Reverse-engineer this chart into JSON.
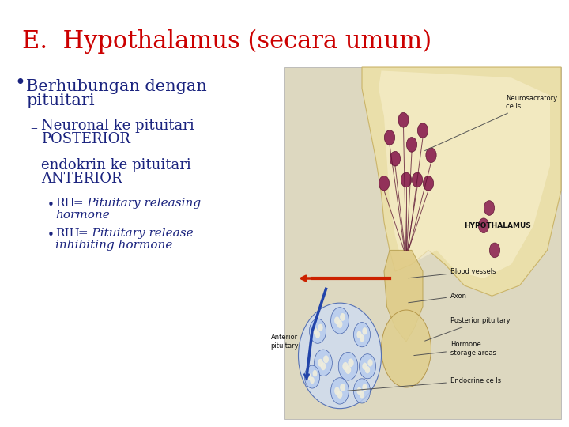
{
  "title": "E.  Hypothalamus (secara umum)",
  "title_color": "#cc0000",
  "title_fontsize": 22,
  "bg_color": "#ffffff",
  "bullet1_line1": "Berhubungan dengan",
  "bullet1_line2": "pituitari",
  "bullet1_color": "#1a237e",
  "bullet1_fontsize": 15,
  "sub1_line1": "Neuronal ke pituitari",
  "sub1_line2": "POSTERIOR",
  "sub2_line1": "endokrin ke pituitari",
  "sub2_line2": "ANTERIOR",
  "sub_color": "#1a237e",
  "sub_fontsize": 13,
  "subsub1_bold": "RH",
  "subsub1_italic": " = Pituitary releasing",
  "subsub1_italic2": "hormone",
  "subsub2_bold": "RIH",
  "subsub2_italic": " = Pituitary release",
  "subsub2_italic2": "inhibiting hormone",
  "subsub_color": "#1a237e",
  "subsub_fontsize": 11,
  "diagram_bg": "#ddd8c0",
  "hypo_body_color": "#e8d898",
  "hypo_inner_color": "#f5eecc",
  "cell_color": "#8b2252",
  "cell_edge_color": "#5a1030",
  "ant_pit_color": "#c8d8f0",
  "ant_pit_edge": "#4060b0",
  "post_pit_color": "#e0d090",
  "red_vessel_color": "#cc2200",
  "blue_vessel_color": "#2244aa",
  "label_color": "#111111",
  "label_fontsize": 6.0
}
